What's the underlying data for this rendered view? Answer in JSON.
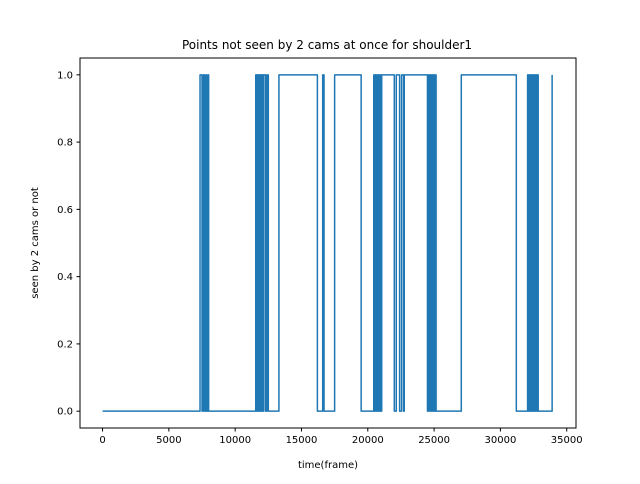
{
  "chart_data": {
    "type": "line",
    "title": "Points not seen by 2 cams at once for shoulder1",
    "xlabel": "time(frame)",
    "ylabel": "seen by 2 cams or not",
    "xlim": [
      -1700,
      35700
    ],
    "ylim": [
      -0.05,
      1.05
    ],
    "xticks": [
      0,
      5000,
      10000,
      15000,
      20000,
      25000,
      30000,
      35000
    ],
    "yticks": [
      0.0,
      0.2,
      0.4,
      0.6,
      0.8,
      1.0
    ],
    "xtick_labels": [
      "0",
      "5000",
      "10000",
      "15000",
      "20000",
      "25000",
      "30000",
      "35000"
    ],
    "ytick_labels": [
      "0.0",
      "0.2",
      "0.4",
      "0.6",
      "0.8",
      "1.0"
    ],
    "step": "post",
    "grid": false,
    "legend": "none",
    "series": [
      {
        "color": "#1f77b4",
        "x": [
          0,
          7350,
          7500,
          7600,
          7700,
          7800,
          7850,
          7950,
          8000,
          11550,
          11620,
          11660,
          11700,
          11740,
          11780,
          11820,
          11860,
          11900,
          11940,
          11980,
          12020,
          12060,
          12100,
          12160,
          12300,
          12400,
          12500,
          13300,
          16200,
          16600,
          16700,
          17500,
          19500,
          20450,
          20500,
          20550,
          20600,
          20650,
          20700,
          20750,
          20800,
          20850,
          20900,
          20950,
          21000,
          21050,
          22000,
          22150,
          22400,
          22550,
          22700,
          22750,
          24500,
          24550,
          24650,
          24700,
          24800,
          24850,
          24950,
          25000,
          25050,
          25100,
          25150,
          27050,
          31200,
          32050,
          32120,
          32180,
          32240,
          32300,
          32360,
          32420,
          32480,
          32540,
          32600,
          32660,
          32720,
          32780,
          32850,
          33900
        ],
        "y": [
          0,
          1,
          0,
          1,
          0,
          1,
          0,
          1,
          0,
          1,
          0,
          1,
          0,
          1,
          0,
          1,
          0,
          1,
          0,
          1,
          0,
          1,
          0,
          1,
          0,
          1,
          0,
          1,
          0,
          1,
          0,
          1,
          0,
          1,
          0,
          1,
          0,
          1,
          0,
          1,
          0,
          1,
          0,
          1,
          0,
          1,
          0,
          1,
          0,
          1,
          0,
          1,
          0,
          1,
          0,
          1,
          0,
          1,
          0,
          1,
          0,
          1,
          0,
          1,
          0,
          1,
          0,
          1,
          0,
          1,
          0,
          1,
          0,
          1,
          0,
          1,
          0,
          1,
          0,
          1
        ]
      }
    ]
  }
}
